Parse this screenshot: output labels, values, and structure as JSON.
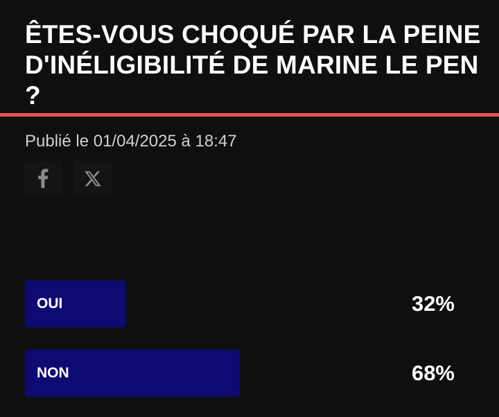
{
  "article": {
    "title": "ÊTES-VOUS CHOQUÉ PAR LA PEINE D'INÉLIGIBILITÉ DE MARINE LE PEN ?",
    "published": "Publié le 01/04/2025 à 18:47"
  },
  "share": {
    "facebook_icon": "facebook-icon",
    "x_icon": "x-icon"
  },
  "poll": {
    "options": [
      {
        "label": "OUI",
        "percent_text": "32%",
        "percent": 32
      },
      {
        "label": "NON",
        "percent_text": "68%",
        "percent": 68
      }
    ]
  },
  "colors": {
    "background": "#0f0f0f",
    "accent": "#e8564f",
    "bar": "#0d0a72",
    "text": "#ffffff"
  }
}
